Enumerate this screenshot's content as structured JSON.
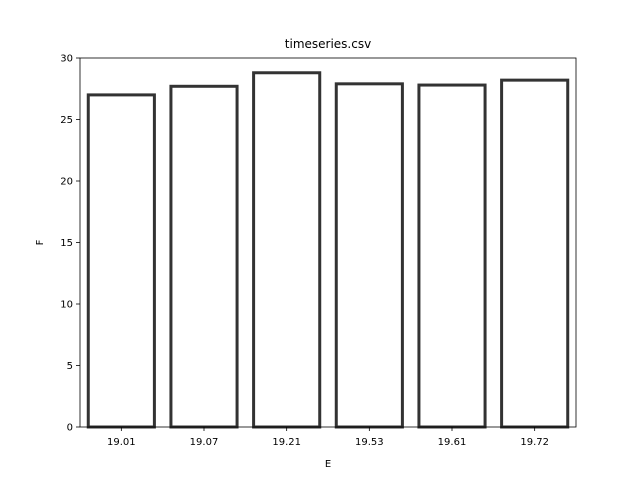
{
  "chart_data": {
    "type": "bar",
    "title": "timeseries.csv",
    "xlabel": "E",
    "ylabel": "F",
    "categories": [
      "19.01",
      "19.07",
      "19.21",
      "19.53",
      "19.61",
      "19.72"
    ],
    "values": [
      27.0,
      27.7,
      28.8,
      27.9,
      27.8,
      28.2
    ],
    "ylim": [
      0,
      30
    ],
    "yticks": [
      0,
      5,
      10,
      15,
      20,
      25,
      30
    ],
    "grid": false,
    "bar_fill": "#ffffff",
    "bar_edge": "#333333"
  }
}
